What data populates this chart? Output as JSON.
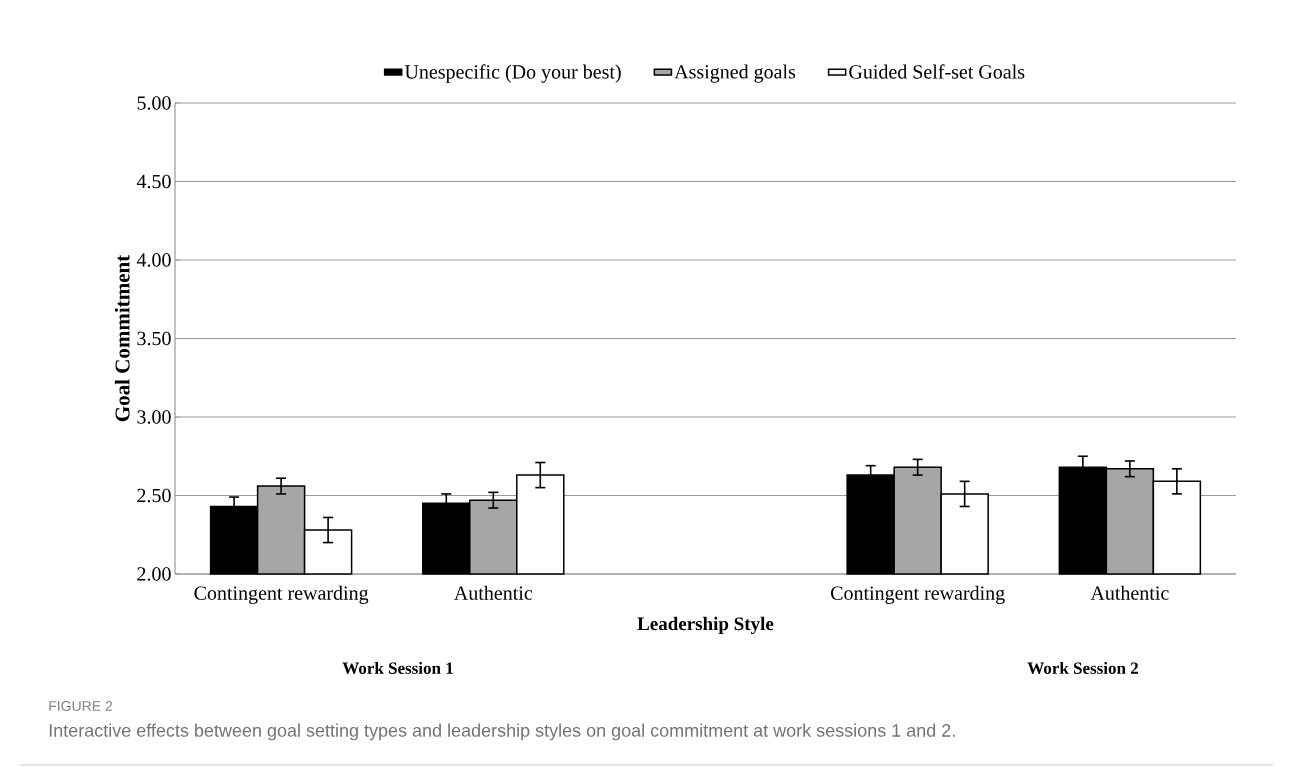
{
  "chart_data": {
    "type": "bar",
    "ylabel": "Goal Commitment",
    "xlabel": "Leadership Style",
    "categories": [
      "Contingent rewarding",
      "Authentic",
      null,
      "Contingent rewarding",
      "Authentic"
    ],
    "series": [
      {
        "name": "Unespecific (Do your best)",
        "color": "#000000",
        "values": [
          2.43,
          2.45,
          null,
          2.63,
          2.68
        ],
        "errors": [
          0.06,
          0.06,
          null,
          0.06,
          0.07
        ]
      },
      {
        "name": "Assigned goals",
        "color": "#a6a6a6",
        "values": [
          2.56,
          2.47,
          null,
          2.68,
          2.67
        ],
        "errors": [
          0.05,
          0.05,
          null,
          0.05,
          0.05
        ]
      },
      {
        "name": "Guided Self-set Goals",
        "color": "#ffffff",
        "values": [
          2.28,
          2.63,
          null,
          2.51,
          2.59
        ],
        "errors": [
          0.08,
          0.08,
          null,
          0.08,
          0.08
        ]
      }
    ],
    "ylim": [
      2,
      5
    ],
    "yticks": [
      {
        "value": 2,
        "label": "2.00"
      },
      {
        "value": 2.5,
        "label": "2.50"
      },
      {
        "value": 3,
        "label": "3.00"
      },
      {
        "value": 3.5,
        "label": "3.50"
      },
      {
        "value": 4,
        "label": "4.00"
      },
      {
        "value": 4.5,
        "label": "4.50"
      },
      {
        "value": 5,
        "label": "5.00"
      }
    ],
    "grid": "y",
    "legend": "top",
    "annotations": [
      "Work Session 1",
      "Work Session 2",
      "FIGURE 2",
      "Interactive effects between goal setting types and leadership styles on goal commitment at work sessions 1 and 2."
    ]
  }
}
